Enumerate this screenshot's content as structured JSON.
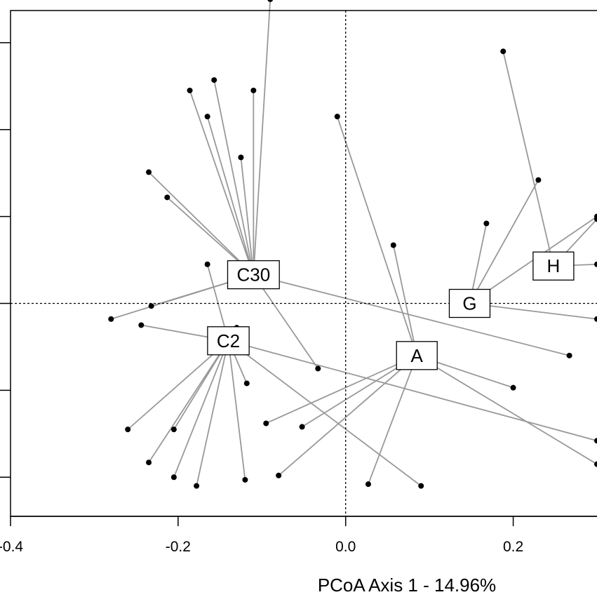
{
  "chart_data": {
    "type": "scatter",
    "subtype": "pcoa-spider",
    "xlabel": "PCoA Axis 1 - 14.96%",
    "ylabel": "",
    "xlim": [
      -0.4,
      0.3
    ],
    "ylim": [
      -0.245,
      0.337
    ],
    "x_ticks": [
      -0.4,
      -0.2,
      0.0,
      0.2
    ],
    "x_tick_labels": [
      "-0.4",
      "-0.2",
      "0.0",
      "0.2"
    ],
    "y_ticks": [
      -0.2,
      -0.1,
      0.0,
      0.1,
      0.2,
      0.3
    ],
    "reference_lines": {
      "x": 0.0,
      "y": 0.0,
      "style": "dotted"
    },
    "grid": false,
    "colors": {
      "spoke": "#999999",
      "point": "#000000",
      "frame": "#000000"
    },
    "groups": [
      {
        "label": "C30",
        "centroid": [
          -0.11,
          0.033
        ],
        "points": [
          [
            -0.09,
            0.35
          ],
          [
            -0.157,
            0.257
          ],
          [
            -0.186,
            0.245
          ],
          [
            -0.11,
            0.245
          ],
          [
            -0.165,
            0.215
          ],
          [
            -0.125,
            0.168
          ],
          [
            -0.235,
            0.151
          ],
          [
            -0.213,
            0.122
          ],
          [
            -0.033,
            -0.075
          ],
          [
            -0.232,
            -0.003
          ],
          [
            -0.28,
            -0.018
          ],
          [
            0.267,
            -0.06
          ]
        ]
      },
      {
        "label": "C2",
        "centroid": [
          -0.14,
          -0.043
        ],
        "points": [
          [
            -0.165,
            0.045
          ],
          [
            -0.244,
            -0.025
          ],
          [
            -0.13,
            -0.028
          ],
          [
            -0.26,
            -0.145
          ],
          [
            -0.205,
            -0.145
          ],
          [
            -0.235,
            -0.183
          ],
          [
            -0.205,
            -0.2
          ],
          [
            -0.178,
            -0.21
          ],
          [
            -0.118,
            -0.092
          ],
          [
            -0.12,
            -0.203
          ],
          [
            0.09,
            -0.21
          ],
          [
            0.3,
            -0.158
          ]
        ]
      },
      {
        "label": "A",
        "centroid": [
          0.085,
          -0.06
        ],
        "points": [
          [
            -0.01,
            0.215
          ],
          [
            0.057,
            0.067
          ],
          [
            -0.095,
            -0.138
          ],
          [
            -0.052,
            -0.142
          ],
          [
            -0.08,
            -0.198
          ],
          [
            0.027,
            -0.208
          ],
          [
            0.2,
            -0.097
          ],
          [
            0.3,
            -0.185
          ]
        ]
      },
      {
        "label": "G",
        "centroid": [
          0.148,
          0.0
        ],
        "points": [
          [
            0.168,
            0.092
          ],
          [
            0.23,
            0.142
          ],
          [
            0.3,
            -0.018
          ],
          [
            0.3,
            0.1
          ]
        ]
      },
      {
        "label": "H",
        "centroid": [
          0.248,
          0.043
        ],
        "points": [
          [
            0.188,
            0.29
          ],
          [
            0.3,
            0.097
          ],
          [
            0.3,
            0.045
          ]
        ]
      }
    ]
  }
}
